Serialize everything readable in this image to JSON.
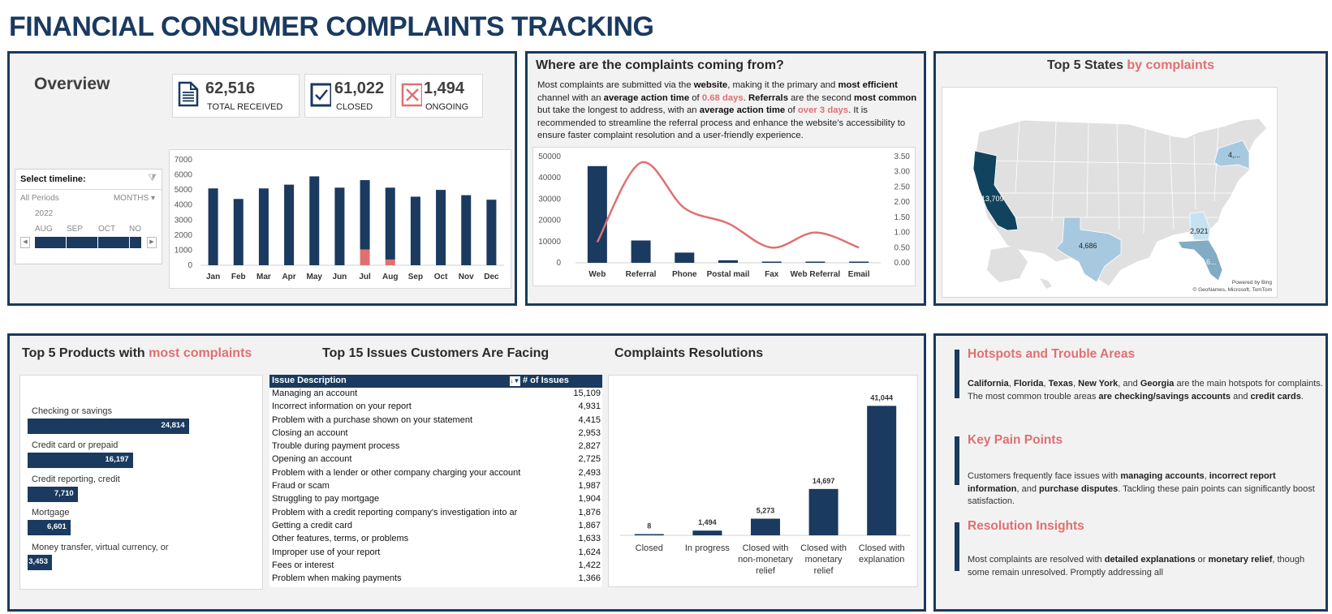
{
  "title": "FINANCIAL CONSUMER COMPLAINTS TRACKING",
  "colors": {
    "navy": "#1a3a5f",
    "coral": "#e07070",
    "panel_bg": "#f2f2f2"
  },
  "overview": {
    "title": "Overview",
    "kpis": [
      {
        "value": "62,516",
        "label": "TOTAL RECEIVED",
        "icon": "document-icon"
      },
      {
        "value": "61,022",
        "label": "CLOSED",
        "icon": "checkbox-checked-icon"
      },
      {
        "value": "1,494",
        "label": "ONGOING",
        "icon": "checkbox-x-icon"
      }
    ],
    "timeline": {
      "label": "Select timeline:",
      "period": "All Periods",
      "unit": "MONTHS",
      "year": "2022",
      "months": [
        "AUG",
        "SEP",
        "OCT",
        "NO"
      ]
    }
  },
  "channel": {
    "title": "Where are the complaints coming from?",
    "text_parts": {
      "p1": "Most complaints are submitted via the ",
      "b1": "website",
      "p2": ", making it the primary and ",
      "b2": "most efficient",
      "p3": " channel with an ",
      "b3": "average action time",
      "p4": " of ",
      "h1": "0.68 days",
      "p5": ". ",
      "b4": "Referrals",
      "p6": " are the second ",
      "b5": "most common",
      "p7": " but take the longest to address, with an ",
      "b6": "average action time",
      "p8": " of ",
      "h2": "over 3 days",
      "p9": ". It is recommended to streamline the referral process and enhance the website’s accessibility to ensure faster complaint resolution and a user-friendly experience."
    }
  },
  "states": {
    "title_a": "Top 5 States ",
    "title_b": "by complaints",
    "labels": {
      "CA": "13,709",
      "TX": "4,686",
      "GA": "2,921",
      "NY": "4,...",
      "FL": "6..."
    },
    "credit_1": "Powered by Bing",
    "credit_2": "© GeoNames, Microsoft, TomTom"
  },
  "products": {
    "title_a": "Top 5 Products with ",
    "title_b": "most  complaints"
  },
  "issues": {
    "title": "Top 15 Issues Customers Are Facing",
    "col_desc": "Issue Description",
    "col_count": "# of Issues",
    "rows": [
      {
        "desc": "Managing an account",
        "count": "15,109"
      },
      {
        "desc": "Incorrect information on your report",
        "count": "4,931"
      },
      {
        "desc": "Problem with a purchase shown on your statement",
        "count": "4,415"
      },
      {
        "desc": "Closing an account",
        "count": "2,953"
      },
      {
        "desc": "Trouble during payment process",
        "count": "2,827"
      },
      {
        "desc": "Opening an account",
        "count": "2,725"
      },
      {
        "desc": "Problem with a lender or other company charging your account",
        "count": "2,493"
      },
      {
        "desc": "Fraud or scam",
        "count": "1,987"
      },
      {
        "desc": "Struggling to pay mortgage",
        "count": "1,904"
      },
      {
        "desc": "Problem with a credit reporting company's investigation into ar",
        "count": "1,876"
      },
      {
        "desc": "Getting a credit card",
        "count": "1,867"
      },
      {
        "desc": "Other features, terms, or problems",
        "count": "1,633"
      },
      {
        "desc": "Improper use of your report",
        "count": "1,624"
      },
      {
        "desc": "Fees or interest",
        "count": "1,422"
      },
      {
        "desc": "Problem when making payments",
        "count": "1,366"
      }
    ]
  },
  "resolutions": {
    "title": "Complaints Resolutions"
  },
  "insights": [
    {
      "title": "Hotspots and Trouble Areas",
      "parts": [
        {
          "b": "California"
        },
        {
          "t": ", "
        },
        {
          "b": "Florida"
        },
        {
          "t": ", "
        },
        {
          "b": "Texas"
        },
        {
          "t": ", "
        },
        {
          "b": "New York"
        },
        {
          "t": ", and "
        },
        {
          "b": "Georgia"
        },
        {
          "t": " are the main hotspots for complaints. The most common trouble areas "
        },
        {
          "b": "are checking/savings accounts"
        },
        {
          "t": " and "
        },
        {
          "b": "credit cards"
        },
        {
          "t": "."
        }
      ]
    },
    {
      "title": "Key Pain Points",
      "parts": [
        {
          "t": "Customers frequently face issues with "
        },
        {
          "b": "managing accounts"
        },
        {
          "t": ", "
        },
        {
          "b": "incorrect report information"
        },
        {
          "t": ", and "
        },
        {
          "b": "purchase disputes"
        },
        {
          "t": ". Tackling these pain points can significantly boost satisfaction."
        }
      ]
    },
    {
      "title": "Resolution Insights",
      "parts": [
        {
          "t": "Most complaints are resolved with "
        },
        {
          "b": "detailed explanations"
        },
        {
          "t": " or "
        },
        {
          "b": "monetary relief"
        },
        {
          "t": ", though some remain unresolved. Promptly addressing all"
        }
      ]
    }
  ],
  "chart_data": [
    {
      "id": "monthly",
      "type": "bar",
      "stacked": true,
      "title": "",
      "categories": [
        "Jan",
        "Feb",
        "Mar",
        "Apr",
        "May",
        "Jun",
        "Jul",
        "Aug",
        "Sep",
        "Oct",
        "Nov",
        "Dec"
      ],
      "series": [
        {
          "name": "Ongoing",
          "color": "#e07070",
          "values": [
            0,
            0,
            0,
            0,
            0,
            0,
            1050,
            380,
            0,
            0,
            0,
            0
          ]
        },
        {
          "name": "Closed",
          "color": "#1a3a5f",
          "values": [
            5100,
            4400,
            5100,
            5350,
            5900,
            5150,
            4600,
            4770,
            4550,
            5000,
            4650,
            4350
          ]
        }
      ],
      "ylim": [
        0,
        7000
      ],
      "yticks": [
        "0",
        "1000",
        "2000",
        "3000",
        "4000",
        "5000",
        "6000",
        "7000"
      ],
      "grid": false
    },
    {
      "id": "channel",
      "type": "bar+line",
      "title": "",
      "categories": [
        "Web",
        "Referral",
        "Phone",
        "Postal mail",
        "Fax",
        "Web Referral",
        "Email"
      ],
      "series": [
        {
          "name": "Complaints",
          "type": "bar",
          "axis": "left",
          "color": "#1a3a5f",
          "values": [
            45500,
            10500,
            4800,
            1200,
            300,
            300,
            300
          ]
        },
        {
          "name": "Average action time (days)",
          "type": "line",
          "axis": "right",
          "color": "#e07070",
          "values": [
            0.68,
            3.3,
            1.8,
            1.3,
            0.5,
            1.0,
            0.5
          ]
        }
      ],
      "ylim_left": [
        0,
        50000
      ],
      "ylim_right": [
        0,
        3.5
      ],
      "yticks_left": [
        "0",
        "10000",
        "20000",
        "30000",
        "40000",
        "50000"
      ],
      "yticks_right": [
        "0.00",
        "0.50",
        "1.00",
        "1.50",
        "2.00",
        "2.50",
        "3.00",
        "3.50"
      ],
      "grid": false
    },
    {
      "id": "products",
      "type": "bar",
      "orientation": "horizontal",
      "categories": [
        "Checking or savings",
        "Credit card or prepaid",
        "Credit reporting, credit",
        "Mortgage",
        "Money transfer, virtual currency, or"
      ],
      "values": [
        24814,
        16197,
        7710,
        6601,
        3453
      ],
      "labels": [
        "24,814",
        "16,197",
        "7,710",
        "6,601",
        "3,453"
      ],
      "xlim": [
        0,
        35000
      ]
    },
    {
      "id": "resolutions",
      "type": "bar",
      "categories": [
        [
          "Closed"
        ],
        [
          "In progress"
        ],
        [
          "Closed with",
          "non-monetary",
          "relief"
        ],
        [
          "Closed with",
          "monetary",
          "relief"
        ],
        [
          "Closed with",
          "explanation"
        ]
      ],
      "values": [
        8,
        1494,
        5273,
        14697,
        41044
      ],
      "labels": [
        "8",
        "1,494",
        "5,273",
        "14,697",
        "41,044"
      ],
      "ylim": [
        0,
        45000
      ]
    }
  ]
}
